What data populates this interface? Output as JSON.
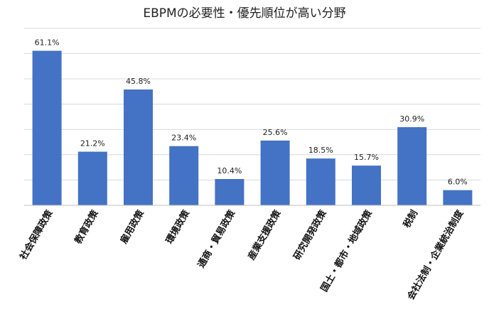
{
  "chart_data": {
    "type": "bar",
    "title": "EBPMの必要性・優先順位が高い分野",
    "categories": [
      "社会保障政策",
      "教育政策",
      "雇用政策",
      "環境政策",
      "通商・貿易政策",
      "産業支援政策",
      "研究開発政策",
      "国土・都市・地域政策",
      "税制",
      "会社法制・企業統治制度"
    ],
    "values": [
      61.1,
      21.2,
      45.8,
      23.4,
      10.4,
      25.6,
      18.5,
      15.7,
      30.9,
      6.0
    ],
    "value_labels": [
      "61.1%",
      "21.2%",
      "45.8%",
      "23.4%",
      "10.4%",
      "25.6%",
      "18.5%",
      "15.7%",
      "30.9%",
      "6.0%"
    ],
    "xlabel": "",
    "ylabel": "",
    "ylim": [
      0,
      70
    ],
    "grid": true,
    "bar_color": "#4472C4",
    "grid_color": "#d9d9d9"
  }
}
